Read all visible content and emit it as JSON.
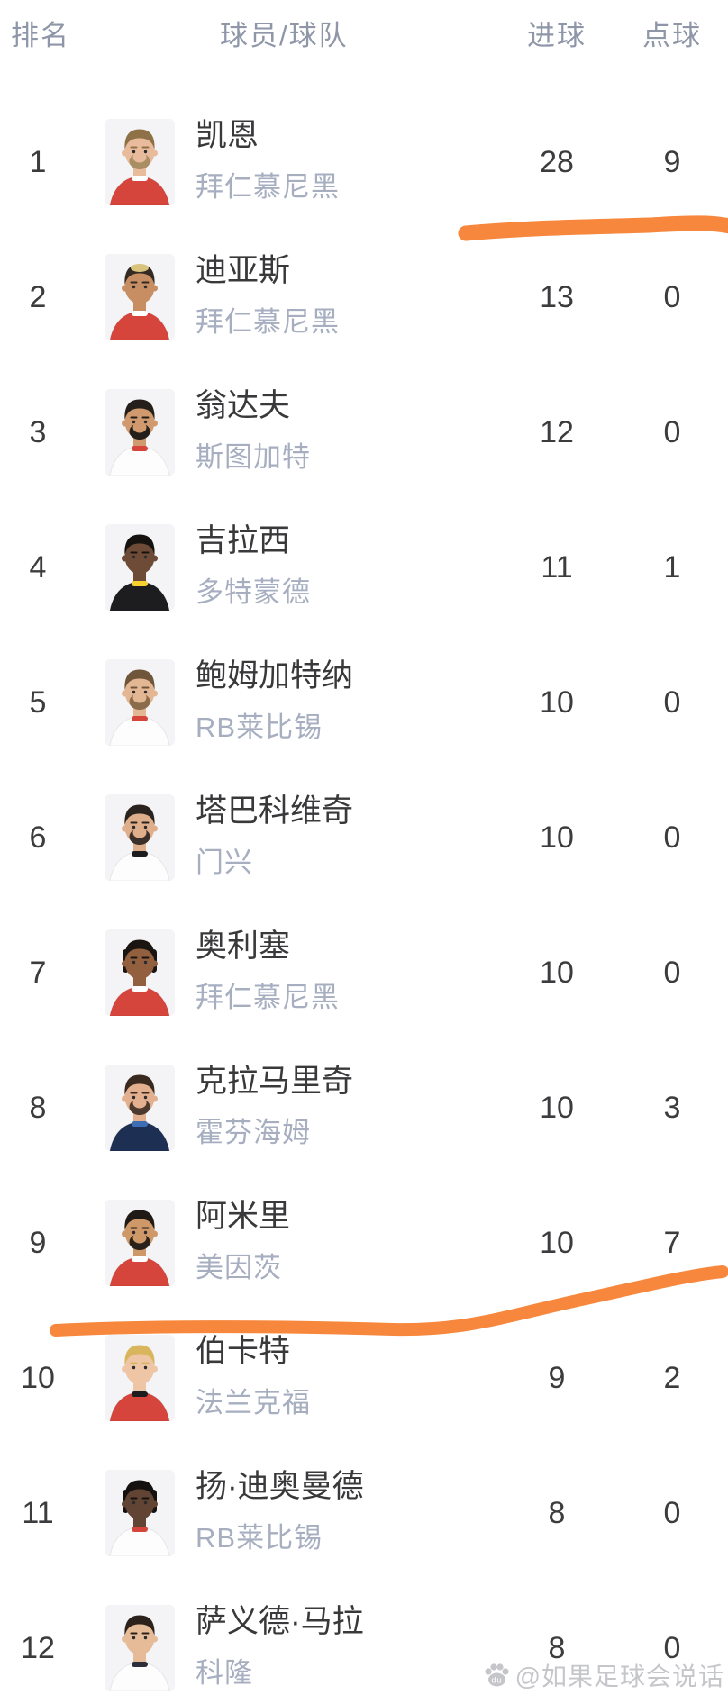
{
  "header": {
    "rank": "排名",
    "player_team": "球员/球队",
    "goals": "进球",
    "penalties": "点球"
  },
  "rows": [
    {
      "rank": "1",
      "name": "凯恩",
      "team": "拜仁慕尼黑",
      "goals": "28",
      "penalties": "9",
      "avatar": {
        "bg": "#f4f4f6",
        "skin": "#e9bb9d",
        "hair": "#8f7148",
        "beard": "#a98e64",
        "jersey": "#d5453c",
        "accent": "#ffffff"
      }
    },
    {
      "rank": "2",
      "name": "迪亚斯",
      "team": "拜仁慕尼黑",
      "goals": "13",
      "penalties": "0",
      "avatar": {
        "bg": "#f4f4f6",
        "skin": "#c68e62",
        "hair": "#332a24",
        "hair2": "#d8c27c",
        "jersey": "#d5453c",
        "accent": "#ffffff"
      }
    },
    {
      "rank": "3",
      "name": "翁达夫",
      "team": "斯图加特",
      "goals": "12",
      "penalties": "0",
      "avatar": {
        "bg": "#f4f4f6",
        "skin": "#d09a6e",
        "hair": "#241f1b",
        "beard": "#241f1b",
        "jersey": "#fdfdfd",
        "accent": "#d5453c"
      }
    },
    {
      "rank": "4",
      "name": "吉拉西",
      "team": "多特蒙德",
      "goals": "11",
      "penalties": "1",
      "avatar": {
        "bg": "#f4f4f6",
        "skin": "#6d4b36",
        "hair": "#161210",
        "jersey": "#1d1d1f",
        "accent": "#f7d22e"
      }
    },
    {
      "rank": "5",
      "name": "鲍姆加特纳",
      "team": "RB莱比锡",
      "goals": "10",
      "penalties": "0",
      "avatar": {
        "bg": "#f4f4f6",
        "skin": "#e4b794",
        "hair": "#6f5539",
        "beard": "#8a6b4a",
        "jersey": "#fdfdfd",
        "accent": "#d5453c"
      }
    },
    {
      "rank": "6",
      "name": "塔巴科维奇",
      "team": "门兴",
      "goals": "10",
      "penalties": "0",
      "avatar": {
        "bg": "#f4f4f6",
        "skin": "#dfae8b",
        "hair": "#2b241e",
        "beard": "#3a3029",
        "jersey": "#fdfdfd",
        "accent": "#1d1d1f"
      }
    },
    {
      "rank": "7",
      "name": "奥利塞",
      "team": "拜仁慕尼黑",
      "goals": "10",
      "penalties": "0",
      "avatar": {
        "bg": "#f4f4f6",
        "skin": "#92603f",
        "hair": "#1b1511",
        "style": "locks",
        "jersey": "#d5453c",
        "accent": "#ffffff"
      }
    },
    {
      "rank": "8",
      "name": "克拉马里奇",
      "team": "霍芬海姆",
      "goals": "10",
      "penalties": "3",
      "avatar": {
        "bg": "#f4f4f6",
        "skin": "#e2b08e",
        "hair": "#39291f",
        "beard": "#4a392c",
        "jersey": "#1d2f52",
        "accent": "#3d6db5"
      }
    },
    {
      "rank": "9",
      "name": "阿米里",
      "team": "美因茨",
      "goals": "10",
      "penalties": "7",
      "avatar": {
        "bg": "#f4f4f6",
        "skin": "#cf9868",
        "hair": "#1f1a16",
        "beard": "#2a211a",
        "jersey": "#d5453c",
        "accent": "#ffffff"
      }
    },
    {
      "rank": "10",
      "name": "伯卡特",
      "team": "法兰克福",
      "goals": "9",
      "penalties": "2",
      "avatar": {
        "bg": "#f4f4f6",
        "skin": "#eec6a6",
        "hair": "#d9b55e",
        "jersey": "#d5453c",
        "accent": "#1d1d1f"
      }
    },
    {
      "rank": "11",
      "name": "扬·迪奥曼德",
      "team": "RB莱比锡",
      "goals": "8",
      "penalties": "0",
      "avatar": {
        "bg": "#f4f4f6",
        "skin": "#614433",
        "hair": "#141110",
        "style": "locks",
        "jersey": "#fdfdfd",
        "accent": "#d5453c"
      }
    },
    {
      "rank": "12",
      "name": "萨义德·马拉",
      "team": "科隆",
      "goals": "8",
      "penalties": "0",
      "avatar": {
        "bg": "#f4f4f6",
        "skin": "#e6bb97",
        "hair": "#2c221b",
        "jersey": "#fdfdfd",
        "accent": "#2a2f3a"
      }
    }
  ],
  "annotations": {
    "marker_color": "#f6873c",
    "marker_1": "hand-drawn underline beneath row 1 goals/penalties",
    "marker_2": "hand-drawn line between row 9 and row 10, rising to the right"
  },
  "watermark": {
    "handle": "@如果足球会说话",
    "logo": "baijiahao-paw-icon",
    "logo_label": "du"
  },
  "colors": {
    "header_text": "#8e96a8",
    "primary_text": "#3c3c3f",
    "team_text": "#a6aec0",
    "watermark_text": "#c2c3c8",
    "background": "#ffffff"
  }
}
